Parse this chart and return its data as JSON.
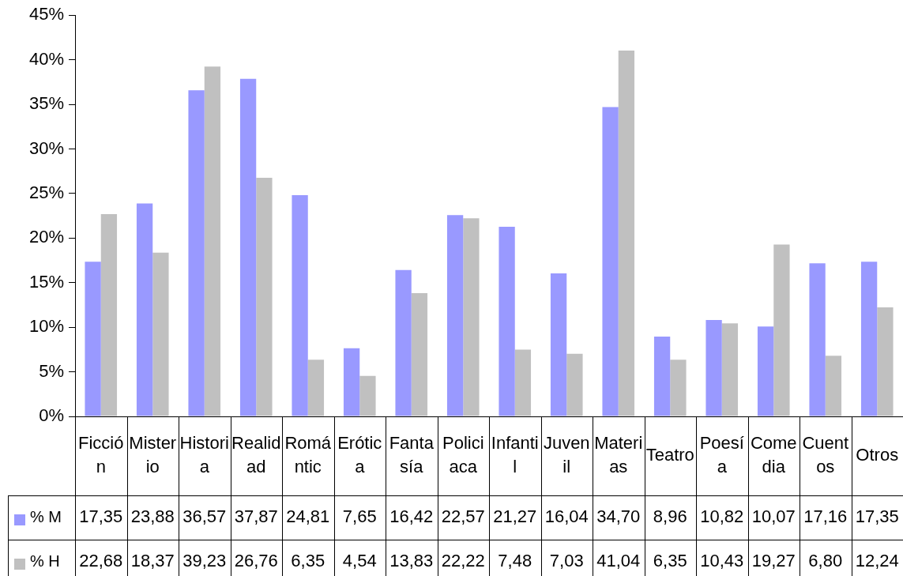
{
  "chart_data": {
    "type": "bar",
    "categories": [
      "Ficción",
      "Misterio",
      "Historia",
      "Realidad",
      "Romántic",
      "Erótica",
      "Fantasía",
      "Policiaca",
      "Infantil",
      "Juvenil",
      "Materias",
      "Teatro",
      "Poesía",
      "Comedia",
      "Cuentos",
      "Otros"
    ],
    "series": [
      {
        "name": "% M",
        "color": "#9999ff",
        "values": [
          17.35,
          23.88,
          36.57,
          37.87,
          24.81,
          7.65,
          16.42,
          22.57,
          21.27,
          16.04,
          34.7,
          8.96,
          10.82,
          10.07,
          17.16,
          17.35
        ],
        "value_labels": [
          "17,35",
          "23,88",
          "36,57",
          "37,87",
          "24,81",
          "7,65",
          "16,42",
          "22,57",
          "21,27",
          "16,04",
          "34,70",
          "8,96",
          "10,82",
          "10,07",
          "17,16",
          "17,35"
        ]
      },
      {
        "name": "% H",
        "color": "#c0c0c0",
        "values": [
          22.68,
          18.37,
          39.23,
          26.76,
          6.35,
          4.54,
          13.83,
          22.22,
          7.48,
          7.03,
          41.04,
          6.35,
          10.43,
          19.27,
          6.8,
          12.24
        ],
        "value_labels": [
          "22,68",
          "18,37",
          "39,23",
          "26,76",
          "6,35",
          "4,54",
          "13,83",
          "22,22",
          "7,48",
          "7,03",
          "41,04",
          "6,35",
          "10,43",
          "19,27",
          "6,80",
          "12,24"
        ]
      }
    ],
    "ylim": [
      0,
      45
    ],
    "yticks": [
      {
        "value": 0,
        "label": "0%"
      },
      {
        "value": 5,
        "label": "5%"
      },
      {
        "value": 10,
        "label": "10%"
      },
      {
        "value": 15,
        "label": "15%"
      },
      {
        "value": 20,
        "label": "20%"
      },
      {
        "value": 25,
        "label": "25%"
      },
      {
        "value": 30,
        "label": "30%"
      },
      {
        "value": 35,
        "label": "35%"
      },
      {
        "value": 40,
        "label": "40%"
      },
      {
        "value": 45,
        "label": "45%"
      }
    ],
    "grid": false,
    "legend": "bottom"
  }
}
